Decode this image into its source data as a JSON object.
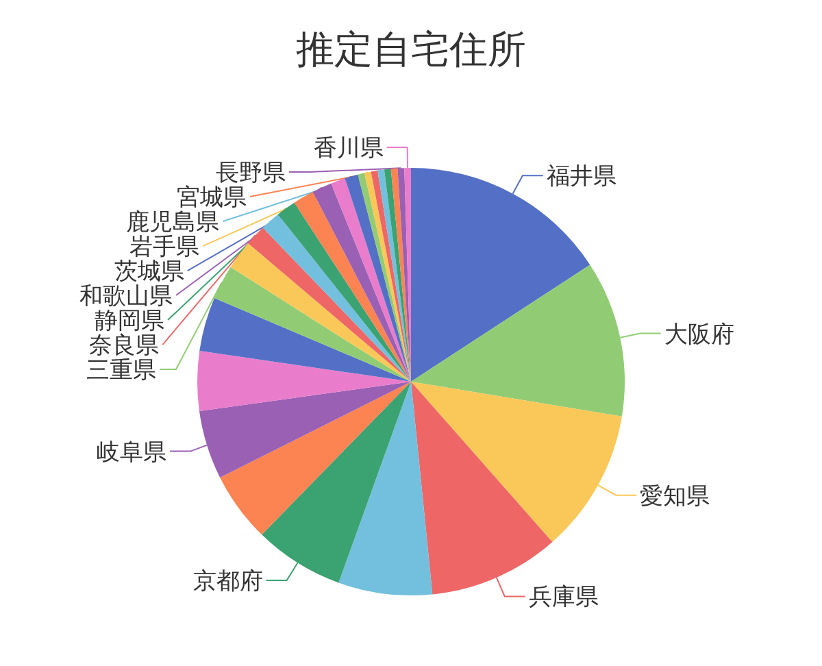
{
  "chart_data": {
    "type": "pie",
    "title": "推定自宅住所",
    "categories": [
      "福井県",
      "大阪府",
      "愛知県",
      "兵庫県",
      null,
      "京都府",
      null,
      "岐阜県",
      null,
      null,
      "三重県",
      null,
      "奈良県",
      null,
      "静岡県",
      null,
      "和歌山県",
      null,
      "茨城県",
      null,
      "岩手県",
      null,
      "鹿児島県",
      null,
      "宮城県",
      "長野県",
      "香川県"
    ],
    "values": [
      15.8,
      11.8,
      10.9,
      9.9,
      7.1,
      6.8,
      5.3,
      5.2,
      4.5,
      4.1,
      2.6,
      2.2,
      1.6,
      1.5,
      1.5,
      1.6,
      1.5,
      1.1,
      1.0,
      0.5,
      0.5,
      0.5,
      0.5,
      0.5,
      0.5,
      0.5,
      0.5
    ],
    "colors": [
      "#5470c6",
      "#91cc75",
      "#fac858",
      "#ee6666",
      "#73c0de",
      "#3ba272",
      "#fc8452",
      "#9a60b4",
      "#ea7ccc",
      "#5470c6",
      "#91cc75",
      "#fac858",
      "#ee6666",
      "#73c0de",
      "#3ba272",
      "#fc8452",
      "#9a60b4",
      "#ea7ccc",
      "#5470c6",
      "#91cc75",
      "#fac858",
      "#ee6666",
      "#73c0de",
      "#3ba272",
      "#fc8452",
      "#9a60b4",
      "#ea7ccc"
    ]
  }
}
